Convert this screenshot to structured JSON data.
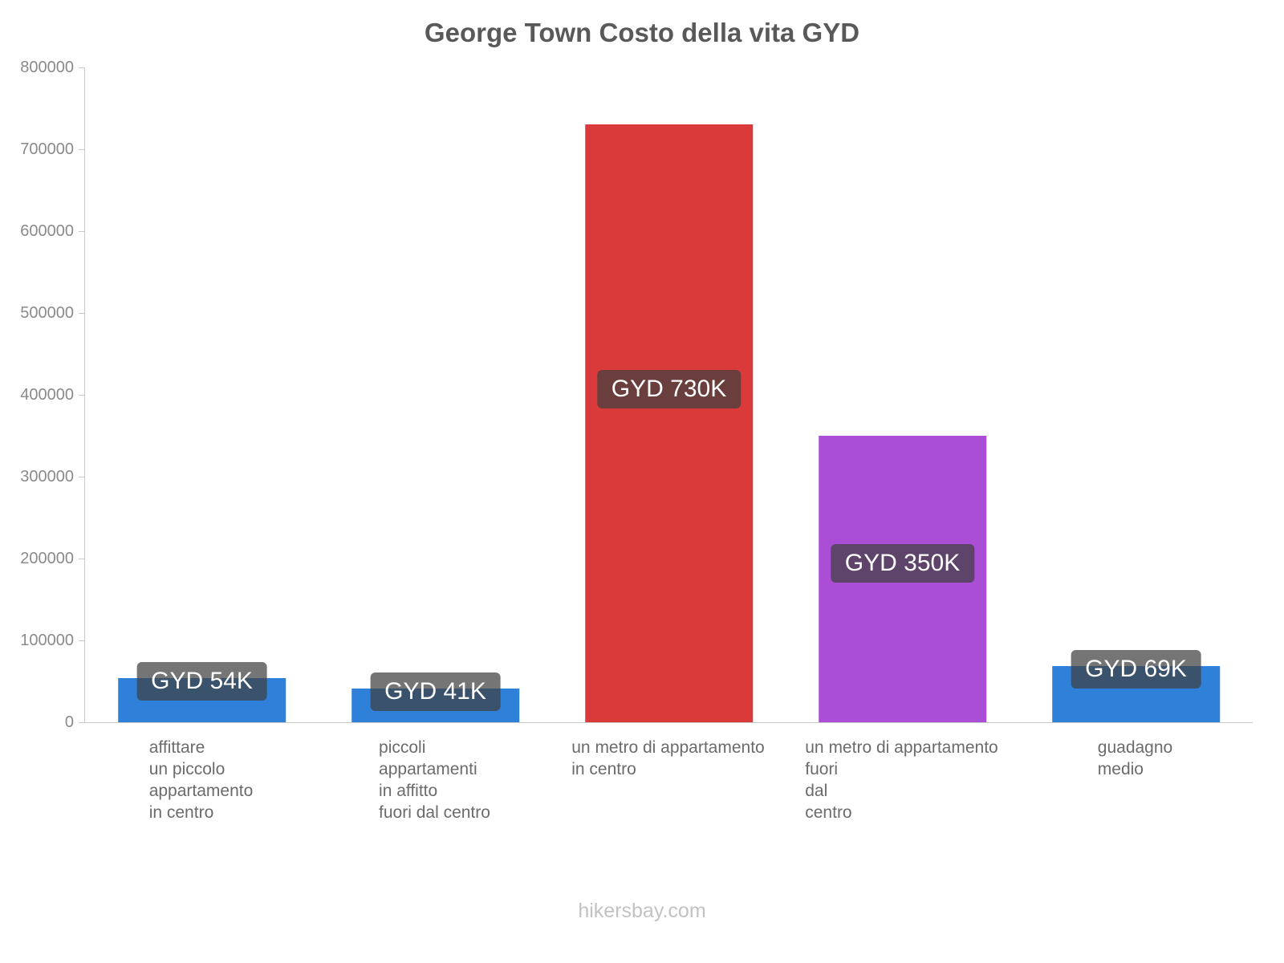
{
  "title": "George Town Costo della vita GYD",
  "footer": "hikersbay.com",
  "chart_data": {
    "type": "bar",
    "title": "George Town Costo della vita GYD",
    "categories": [
      [
        "affittare",
        "un piccolo",
        "appartamento",
        "in centro"
      ],
      [
        "piccoli",
        "appartamenti",
        "in affitto",
        "fuori dal centro"
      ],
      [
        "un metro di appartamento",
        "in centro"
      ],
      [
        "un metro di appartamento",
        "fuori",
        "dal",
        "centro"
      ],
      [
        "guadagno",
        "medio"
      ]
    ],
    "values": [
      54000,
      41000,
      730000,
      350000,
      69000
    ],
    "bar_labels": [
      "GYD 54K",
      "GYD 41K",
      "GYD 730K",
      "GYD 350K",
      "GYD 69K"
    ],
    "bar_colors": [
      "#2e80d9",
      "#2e80d9",
      "#da3b3a",
      "#ab4ed6",
      "#2e80d9"
    ],
    "label_overlay_color": "rgba(64,64,64,0.72)",
    "xlabel": "",
    "ylabel": "",
    "ylim": [
      0,
      800000
    ],
    "yticks": [
      0,
      100000,
      200000,
      300000,
      400000,
      500000,
      600000,
      700000,
      800000
    ],
    "legend": "none",
    "grid": "off"
  }
}
